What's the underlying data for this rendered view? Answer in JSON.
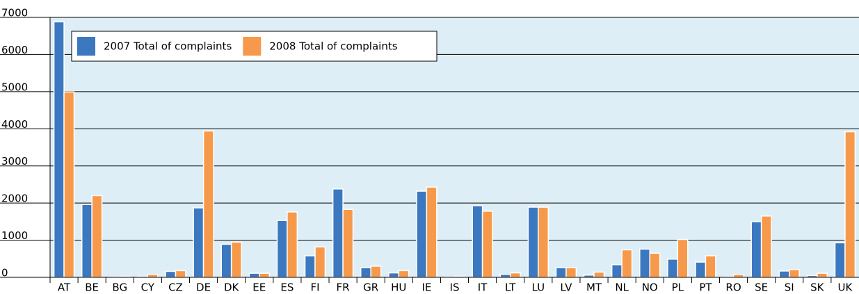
{
  "chart_data": {
    "type": "bar",
    "categories": [
      "AT",
      "BE",
      "BG",
      "CY",
      "CZ",
      "DE",
      "DK",
      "EE",
      "ES",
      "FI",
      "FR",
      "GR",
      "HU",
      "IE",
      "IS",
      "IT",
      "LT",
      "LU",
      "LV",
      "MT",
      "NL",
      "NO",
      "PL",
      "PT",
      "RO",
      "SE",
      "SI",
      "SK",
      "UK"
    ],
    "series": [
      {
        "name": "2007 Total of complaints",
        "color": "#3b78c0",
        "values": [
          6880,
          1960,
          10,
          30,
          160,
          1870,
          890,
          110,
          1530,
          580,
          2380,
          260,
          120,
          2320,
          10,
          1930,
          80,
          1890,
          260,
          60,
          340,
          760,
          490,
          410,
          10,
          1500,
          170,
          50,
          930
        ]
      },
      {
        "name": "2008 Total of complaints",
        "color": "#f7994a",
        "values": [
          4990,
          2200,
          30,
          80,
          180,
          3940,
          950,
          110,
          1760,
          820,
          1830,
          300,
          180,
          2430,
          30,
          1780,
          120,
          1890,
          260,
          140,
          740,
          650,
          1020,
          580,
          80,
          1650,
          210,
          110,
          3920
        ]
      }
    ],
    "ylim": [
      0,
      7000
    ],
    "yticks": [
      0,
      1000,
      2000,
      3000,
      4000,
      5000,
      6000,
      7000
    ],
    "grid": true,
    "legend": "top-left"
  }
}
